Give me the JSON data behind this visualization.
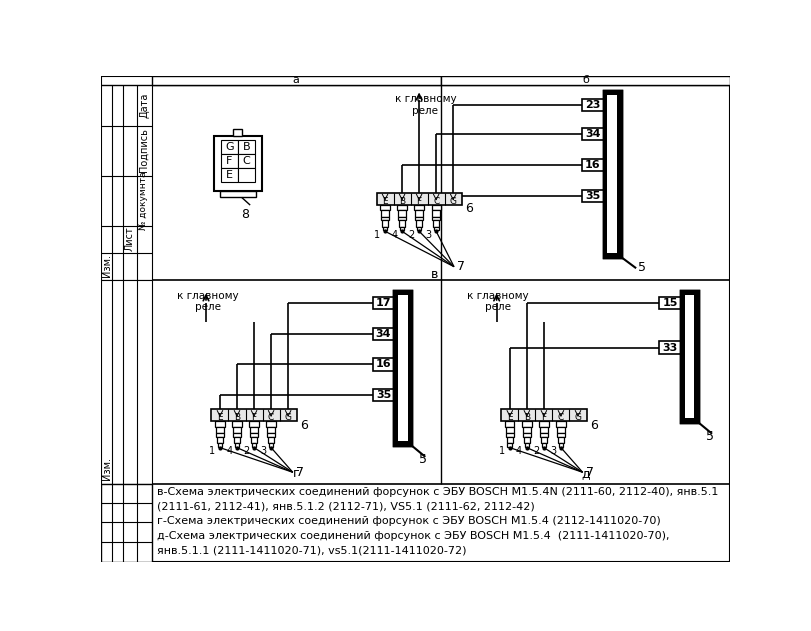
{
  "bg_color": "#ffffff",
  "fig_width": 8.11,
  "fig_height": 6.31,
  "caption_line1": "в-Схема электрических соединений форсунок с ЭБУ BOSCH M1.5.4N (2111-60, 2112-40), янв.5.1",
  "caption_line2": "(2111-61, 2112-41), янв.5.1.2 (2112-71), VS5.1 (2111-62, 2112-42)",
  "caption_line3": "г-Схема электрических соединений форсунок с ЭБУ BOSCH M1.5.4 (2112-1411020-70)",
  "caption_line4": "д-Схема электрических соединений форсунок с ЭБУ BOSCH M1.5.4  (2111-1411020-70),",
  "caption_line5": "янв.5.1.1 (2111-1411020-71), vs5.1(2111-1411020-72)",
  "k_glavnomu_rele": "к главному\nреле",
  "pin_nums_b": [
    "23",
    "34",
    "16",
    "35"
  ],
  "pin_nums_g": [
    "17",
    "34",
    "16",
    "35"
  ],
  "pin_nums_d": [
    "15",
    "33"
  ],
  "conn_labels": [
    "E",
    "B",
    "F",
    "C",
    "G"
  ],
  "inj_nums": [
    "1",
    "4",
    "2",
    "3"
  ]
}
